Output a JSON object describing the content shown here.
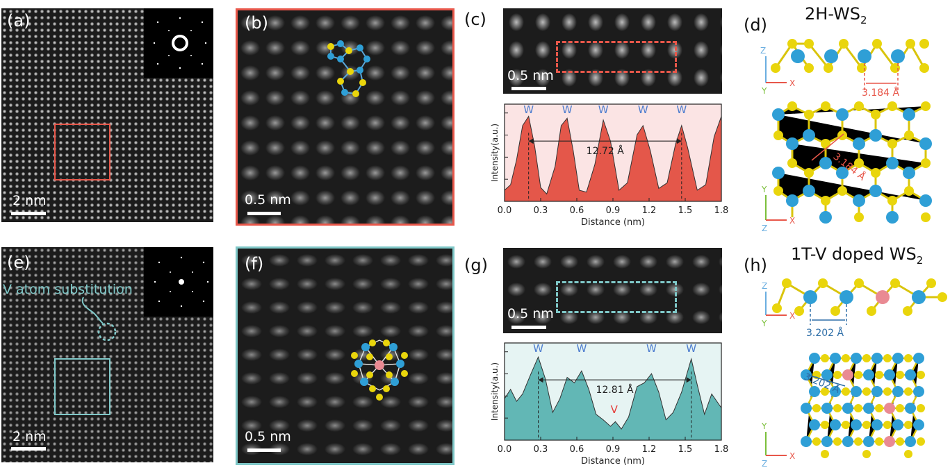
{
  "colors": {
    "red": "#e8574a",
    "red_fill": "#e4574a",
    "red_bg": "#fbe4e4",
    "teal": "#7fc8c8",
    "teal_fill": "#62b7b5",
    "teal_bg": "#e6f4f3",
    "W_atom": "#2f9fd6",
    "S_atom": "#e9d50c",
    "V_atom": "#e98a93",
    "label_blue": "#4f7ecf"
  },
  "panels": {
    "a": {
      "label": "(a)",
      "scale": "2 nm"
    },
    "b": {
      "label": "(b)",
      "scale": "0.5 nm"
    },
    "c": {
      "label": "(c)",
      "scale": "0.5 nm"
    },
    "d": {
      "label": "(d)",
      "title_main": "2H-WS",
      "title_sub": "2",
      "spacing_side": "3.184 Å",
      "spacing_top": "3.184 Å"
    },
    "e": {
      "label": "(e)",
      "scale": "2 nm",
      "annotation": "V atom substitution"
    },
    "f": {
      "label": "(f)",
      "scale": "0.5 nm"
    },
    "g": {
      "label": "(g)",
      "scale": "0.5 nm"
    },
    "h": {
      "label": "(h)",
      "title_main": "1T-V doped WS",
      "title_sub": "2",
      "spacing_side": "3.202 Å",
      "spacing_top": "3.202 Å"
    }
  },
  "axes": {
    "x": "X",
    "y": "Y",
    "z": "Z"
  },
  "chart_data": [
    {
      "type": "area",
      "panel": "c",
      "xlabel": "Distance (nm)",
      "ylabel": "Intensity(a.u.)",
      "xlim": [
        0.0,
        1.8
      ],
      "xticks": [
        "0.0",
        "0.3",
        "0.6",
        "0.9",
        "1.2",
        "1.5",
        "1.8"
      ],
      "peak_labels": [
        {
          "x": 0.2,
          "text": "W"
        },
        {
          "x": 0.52,
          "text": "W"
        },
        {
          "x": 0.82,
          "text": "W"
        },
        {
          "x": 1.15,
          "text": "W"
        },
        {
          "x": 1.47,
          "text": "W"
        }
      ],
      "annotation": {
        "text": "12.72 Å",
        "x1": 0.2,
        "x2": 1.47
      },
      "series": [
        {
          "x": [
            0.0,
            0.05,
            0.1,
            0.15,
            0.2,
            0.25,
            0.3,
            0.35,
            0.42,
            0.47,
            0.52,
            0.57,
            0.62,
            0.68,
            0.75,
            0.82,
            0.88,
            0.95,
            1.02,
            1.1,
            1.15,
            1.21,
            1.28,
            1.35,
            1.42,
            1.47,
            1.52,
            1.6,
            1.67,
            1.74,
            1.8
          ],
          "values": [
            0.12,
            0.18,
            0.45,
            0.82,
            0.92,
            0.6,
            0.15,
            0.08,
            0.38,
            0.82,
            0.9,
            0.55,
            0.12,
            0.1,
            0.4,
            0.88,
            0.65,
            0.12,
            0.2,
            0.72,
            0.82,
            0.55,
            0.14,
            0.2,
            0.62,
            0.82,
            0.58,
            0.12,
            0.18,
            0.7,
            0.92
          ]
        }
      ]
    },
    {
      "type": "area",
      "panel": "g",
      "xlabel": "Distance (nm)",
      "ylabel": "Intensity(a.u.)",
      "xlim": [
        0.0,
        1.8
      ],
      "xticks": [
        "0.0",
        "0.3",
        "0.6",
        "0.9",
        "1.2",
        "1.5",
        "1.8"
      ],
      "peak_labels": [
        {
          "x": 0.28,
          "text": "W",
          "color": "#4f7ecf"
        },
        {
          "x": 0.64,
          "text": "W",
          "color": "#4f7ecf"
        },
        {
          "x": 0.91,
          "text": "V",
          "color": "#e53935"
        },
        {
          "x": 1.22,
          "text": "W",
          "color": "#4f7ecf"
        },
        {
          "x": 1.55,
          "text": "W",
          "color": "#4f7ecf"
        }
      ],
      "annotation": {
        "text": "12.81 Å",
        "x1": 0.28,
        "x2": 1.55
      },
      "series": [
        {
          "x": [
            0.0,
            0.05,
            0.1,
            0.15,
            0.22,
            0.28,
            0.34,
            0.4,
            0.46,
            0.52,
            0.58,
            0.64,
            0.7,
            0.76,
            0.82,
            0.88,
            0.92,
            0.97,
            1.03,
            1.1,
            1.16,
            1.22,
            1.28,
            1.34,
            1.4,
            1.47,
            1.55,
            1.6,
            1.66,
            1.72,
            1.8
          ],
          "values": [
            0.45,
            0.55,
            0.42,
            0.5,
            0.72,
            0.9,
            0.66,
            0.3,
            0.45,
            0.68,
            0.62,
            0.75,
            0.55,
            0.28,
            0.22,
            0.15,
            0.2,
            0.12,
            0.25,
            0.58,
            0.62,
            0.72,
            0.52,
            0.22,
            0.3,
            0.52,
            0.88,
            0.6,
            0.28,
            0.5,
            0.35
          ]
        }
      ]
    }
  ]
}
